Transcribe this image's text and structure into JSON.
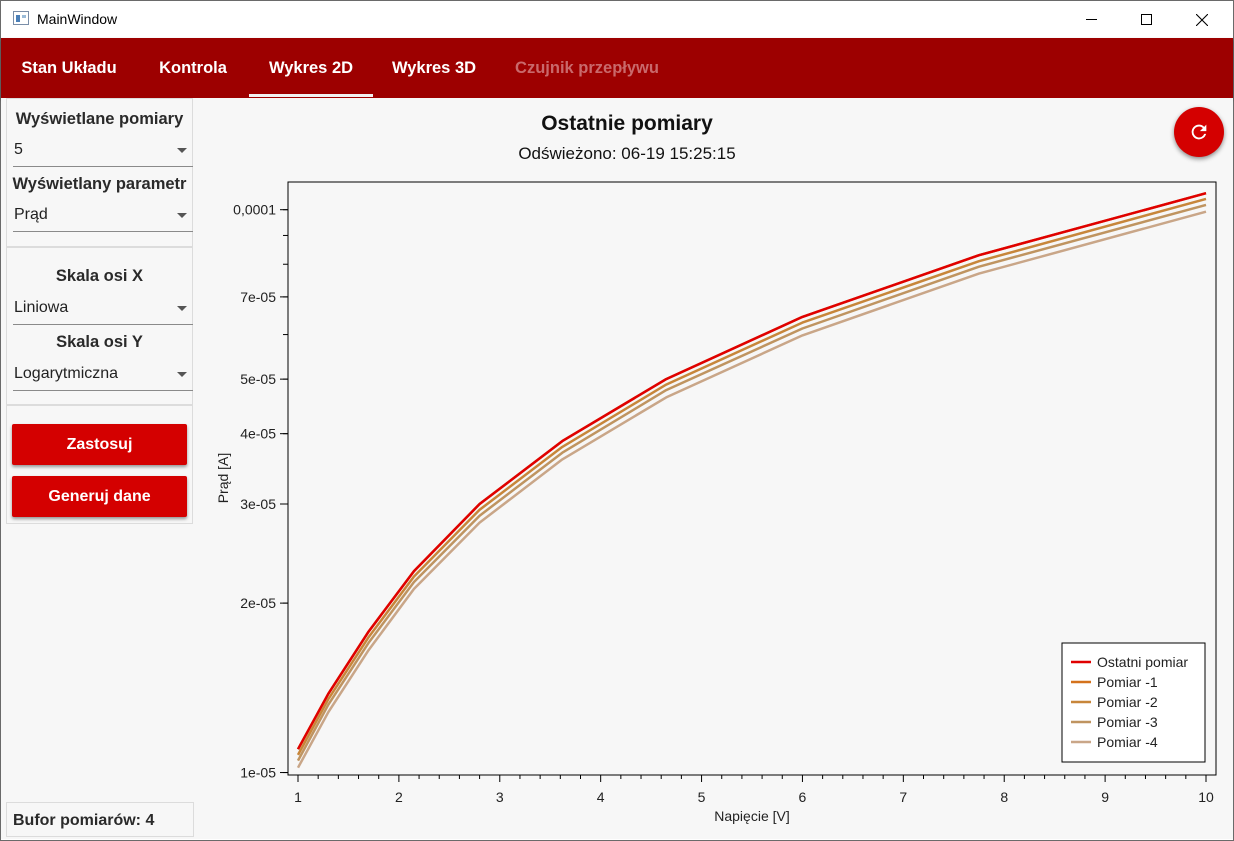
{
  "window": {
    "title": "MainWindow"
  },
  "tabs": [
    {
      "label": "Stan Układu",
      "state": "normal"
    },
    {
      "label": "Kontrola",
      "state": "normal"
    },
    {
      "label": "Wykres 2D",
      "state": "active"
    },
    {
      "label": "Wykres 3D",
      "state": "normal"
    },
    {
      "label": "Czujnik przepływu",
      "state": "disabled"
    }
  ],
  "sidebar": {
    "displayed_measurements": {
      "label": "Wyświetlane pomiary",
      "value": "5"
    },
    "displayed_parameter": {
      "label": "Wyświetlany parametr",
      "value": "Prąd"
    },
    "x_axis_scale": {
      "label": "Skala osi X",
      "value": "Liniowa"
    },
    "y_axis_scale": {
      "label": "Skala osi Y",
      "value": "Logarytmiczna"
    },
    "apply_button": "Zastosuj",
    "generate_button": "Generuj dane"
  },
  "status": {
    "buffer": "Bufor pomiarów: 4"
  },
  "chart": {
    "title": "Ostatnie pomiary",
    "subtitle": "Odświeżono: 06-19 15:25:15"
  },
  "icons": {
    "refresh": "refresh-icon",
    "window_icon": "app-window-icon"
  },
  "colors": {
    "accent": "#9d0000",
    "button": "#d40000",
    "series": [
      "#e00000",
      "#d4721c",
      "#c7863a",
      "#bf9460",
      "#c9a688"
    ]
  },
  "chart_data": {
    "type": "line",
    "title": "Ostatnie pomiary",
    "xlabel": "Napięcie [V]",
    "ylabel": "Prąd [A]",
    "yscale": "log",
    "xlim": [
      1,
      10
    ],
    "ylim": [
      9.9e-06,
      0.000112
    ],
    "grid": false,
    "legend_position": "bottom-right",
    "x_ticks": [
      "1",
      "2",
      "3",
      "4",
      "5",
      "6",
      "7",
      "8",
      "9",
      "10"
    ],
    "y_ticks": [
      {
        "value": 1e-05,
        "label": "1e-05"
      },
      {
        "value": 2e-05,
        "label": "2e-05"
      },
      {
        "value": 3e-05,
        "label": "3e-05"
      },
      {
        "value": 4e-05,
        "label": "4e-05"
      },
      {
        "value": 5e-05,
        "label": "5e-05"
      },
      {
        "value": 7e-05,
        "label": "7e-05"
      },
      {
        "value": 0.0001,
        "label": "0,0001"
      }
    ],
    "x": [
      1,
      1.3,
      1.7,
      2.15,
      2.8,
      3.62,
      4.65,
      6.0,
      7.75,
      10
    ],
    "series": [
      {
        "name": "Ostatni pomiar",
        "values": [
          1.1e-05,
          1.38e-05,
          1.78e-05,
          2.28e-05,
          3e-05,
          3.88e-05,
          5e-05,
          6.45e-05,
          8.3e-05,
          0.000107
        ]
      },
      {
        "name": "Pomiar -1",
        "values": [
          1.1e-05,
          1.38e-05,
          1.78e-05,
          2.28e-05,
          3e-05,
          3.88e-05,
          5e-05,
          6.45e-05,
          8.3e-05,
          0.000107
        ]
      },
      {
        "name": "Pomiar -2",
        "values": [
          1.075e-05,
          1.35e-05,
          1.74e-05,
          2.23e-05,
          2.93e-05,
          3.79e-05,
          4.89e-05,
          6.3e-05,
          8.1e-05,
          0.0001045
        ]
      },
      {
        "name": "Pomiar -3",
        "values": [
          1.05e-05,
          1.32e-05,
          1.7e-05,
          2.18e-05,
          2.86e-05,
          3.7e-05,
          4.78e-05,
          6.15e-05,
          7.92e-05,
          0.000102
        ]
      },
      {
        "name": "Pomiar -4",
        "values": [
          1.02e-05,
          1.28e-05,
          1.65e-05,
          2.12e-05,
          2.78e-05,
          3.6e-05,
          4.64e-05,
          5.98e-05,
          7.7e-05,
          9.92e-05
        ]
      }
    ]
  }
}
